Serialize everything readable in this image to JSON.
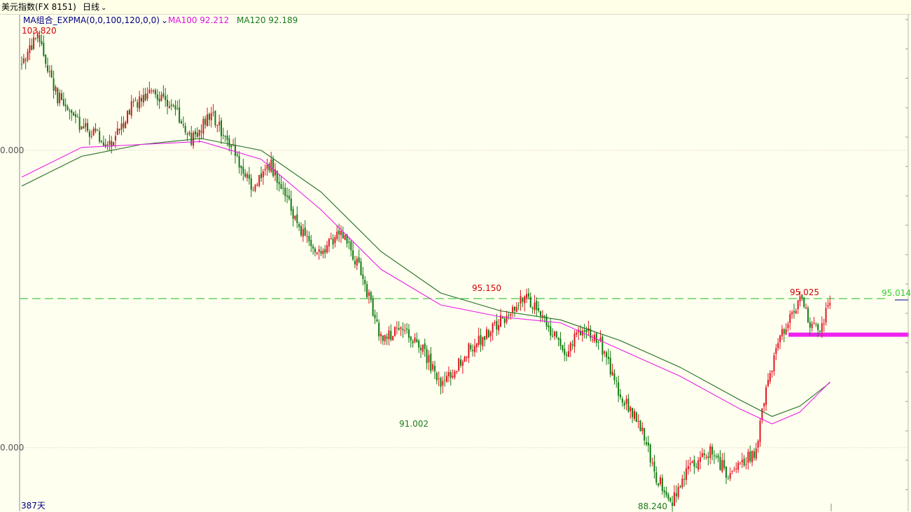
{
  "header": {
    "title": "美元指数(FX 8151)",
    "period_label": "日线",
    "period_icon": "chevron-down-icon"
  },
  "legend": {
    "indicator_label": "MA组合_EXPMA(0,0,100,120,0,0)",
    "indicator_icon": "chevron-down-icon",
    "ma100_label": "MA100 92.212",
    "ma120_label": "MA120 92.189"
  },
  "colors": {
    "background": "#fffff0",
    "up_candle": "#e0141e",
    "down_candle": "#0f7a0f",
    "ma100": "#e81ee8",
    "ma120": "#1e6e1e",
    "hline": "#44cc44",
    "support_bar": "#ee22ee",
    "high_label": "#d00000",
    "low_label": "#1a7a1a",
    "legend_title": "#000080",
    "hline_label": "#22cc22"
  },
  "y_axis": {
    "tick_labels": [
      "0.000",
      "0.000"
    ],
    "scale_note": "387天"
  },
  "chart_data": {
    "type": "candlestick",
    "days_shown": 387,
    "y_range_approx": [
      87.8,
      104.3
    ],
    "gridline_values": [
      100,
      90
    ],
    "annotations": {
      "high_start": "103.820",
      "peak_1": "95.150",
      "low_1": "91.002",
      "low_2": "88.240",
      "peak_2": "95.025",
      "hline_value": "95.014"
    },
    "hline": 95.014,
    "support_level": 93.8,
    "ma100_last": 92.212,
    "ma120_last": 92.189,
    "trajectory": [
      [
        0,
        102.9
      ],
      [
        8,
        103.82
      ],
      [
        18,
        101.8
      ],
      [
        30,
        100.8
      ],
      [
        45,
        100.2
      ],
      [
        55,
        101.5
      ],
      [
        65,
        102.0
      ],
      [
        75,
        101.6
      ],
      [
        85,
        100.3
      ],
      [
        95,
        101.2
      ],
      [
        105,
        100.2
      ],
      [
        115,
        98.7
      ],
      [
        125,
        99.5
      ],
      [
        140,
        97.3
      ],
      [
        150,
        96.4
      ],
      [
        160,
        97.4
      ],
      [
        170,
        95.9
      ],
      [
        180,
        93.7
      ],
      [
        190,
        93.9
      ],
      [
        200,
        93.5
      ],
      [
        210,
        92.0
      ],
      [
        225,
        93.4
      ],
      [
        235,
        93.9
      ],
      [
        245,
        94.6
      ],
      [
        252,
        95.15
      ],
      [
        262,
        94.3
      ],
      [
        272,
        93.2
      ],
      [
        282,
        94.1
      ],
      [
        290,
        93.5
      ],
      [
        300,
        91.8
      ],
      [
        310,
        90.7
      ],
      [
        318,
        89.0
      ],
      [
        326,
        88.24
      ],
      [
        335,
        89.4
      ],
      [
        345,
        89.9
      ],
      [
        355,
        89.0
      ],
      [
        362,
        89.5
      ],
      [
        368,
        89.9
      ],
      [
        372,
        91.5
      ],
      [
        378,
        93.4
      ],
      [
        385,
        94.4
      ],
      [
        390,
        95.025
      ],
      [
        396,
        94.1
      ],
      [
        400,
        93.8
      ],
      [
        405,
        95.0
      ]
    ],
    "ma100": [
      [
        0,
        99.1
      ],
      [
        30,
        100.1
      ],
      [
        60,
        100.2
      ],
      [
        90,
        100.3
      ],
      [
        120,
        99.7
      ],
      [
        150,
        98.0
      ],
      [
        180,
        96.0
      ],
      [
        210,
        94.8
      ],
      [
        240,
        94.4
      ],
      [
        270,
        94.2
      ],
      [
        300,
        93.3
      ],
      [
        330,
        92.4
      ],
      [
        360,
        91.3
      ],
      [
        376,
        90.8
      ],
      [
        390,
        91.2
      ],
      [
        405,
        92.212
      ]
    ],
    "ma120": [
      [
        0,
        98.8
      ],
      [
        30,
        99.8
      ],
      [
        60,
        100.2
      ],
      [
        90,
        100.4
      ],
      [
        120,
        100.0
      ],
      [
        150,
        98.6
      ],
      [
        180,
        96.6
      ],
      [
        210,
        95.2
      ],
      [
        240,
        94.6
      ],
      [
        270,
        94.3
      ],
      [
        300,
        93.6
      ],
      [
        330,
        92.7
      ],
      [
        360,
        91.6
      ],
      [
        376,
        91.05
      ],
      [
        390,
        91.4
      ],
      [
        405,
        92.189
      ]
    ]
  }
}
